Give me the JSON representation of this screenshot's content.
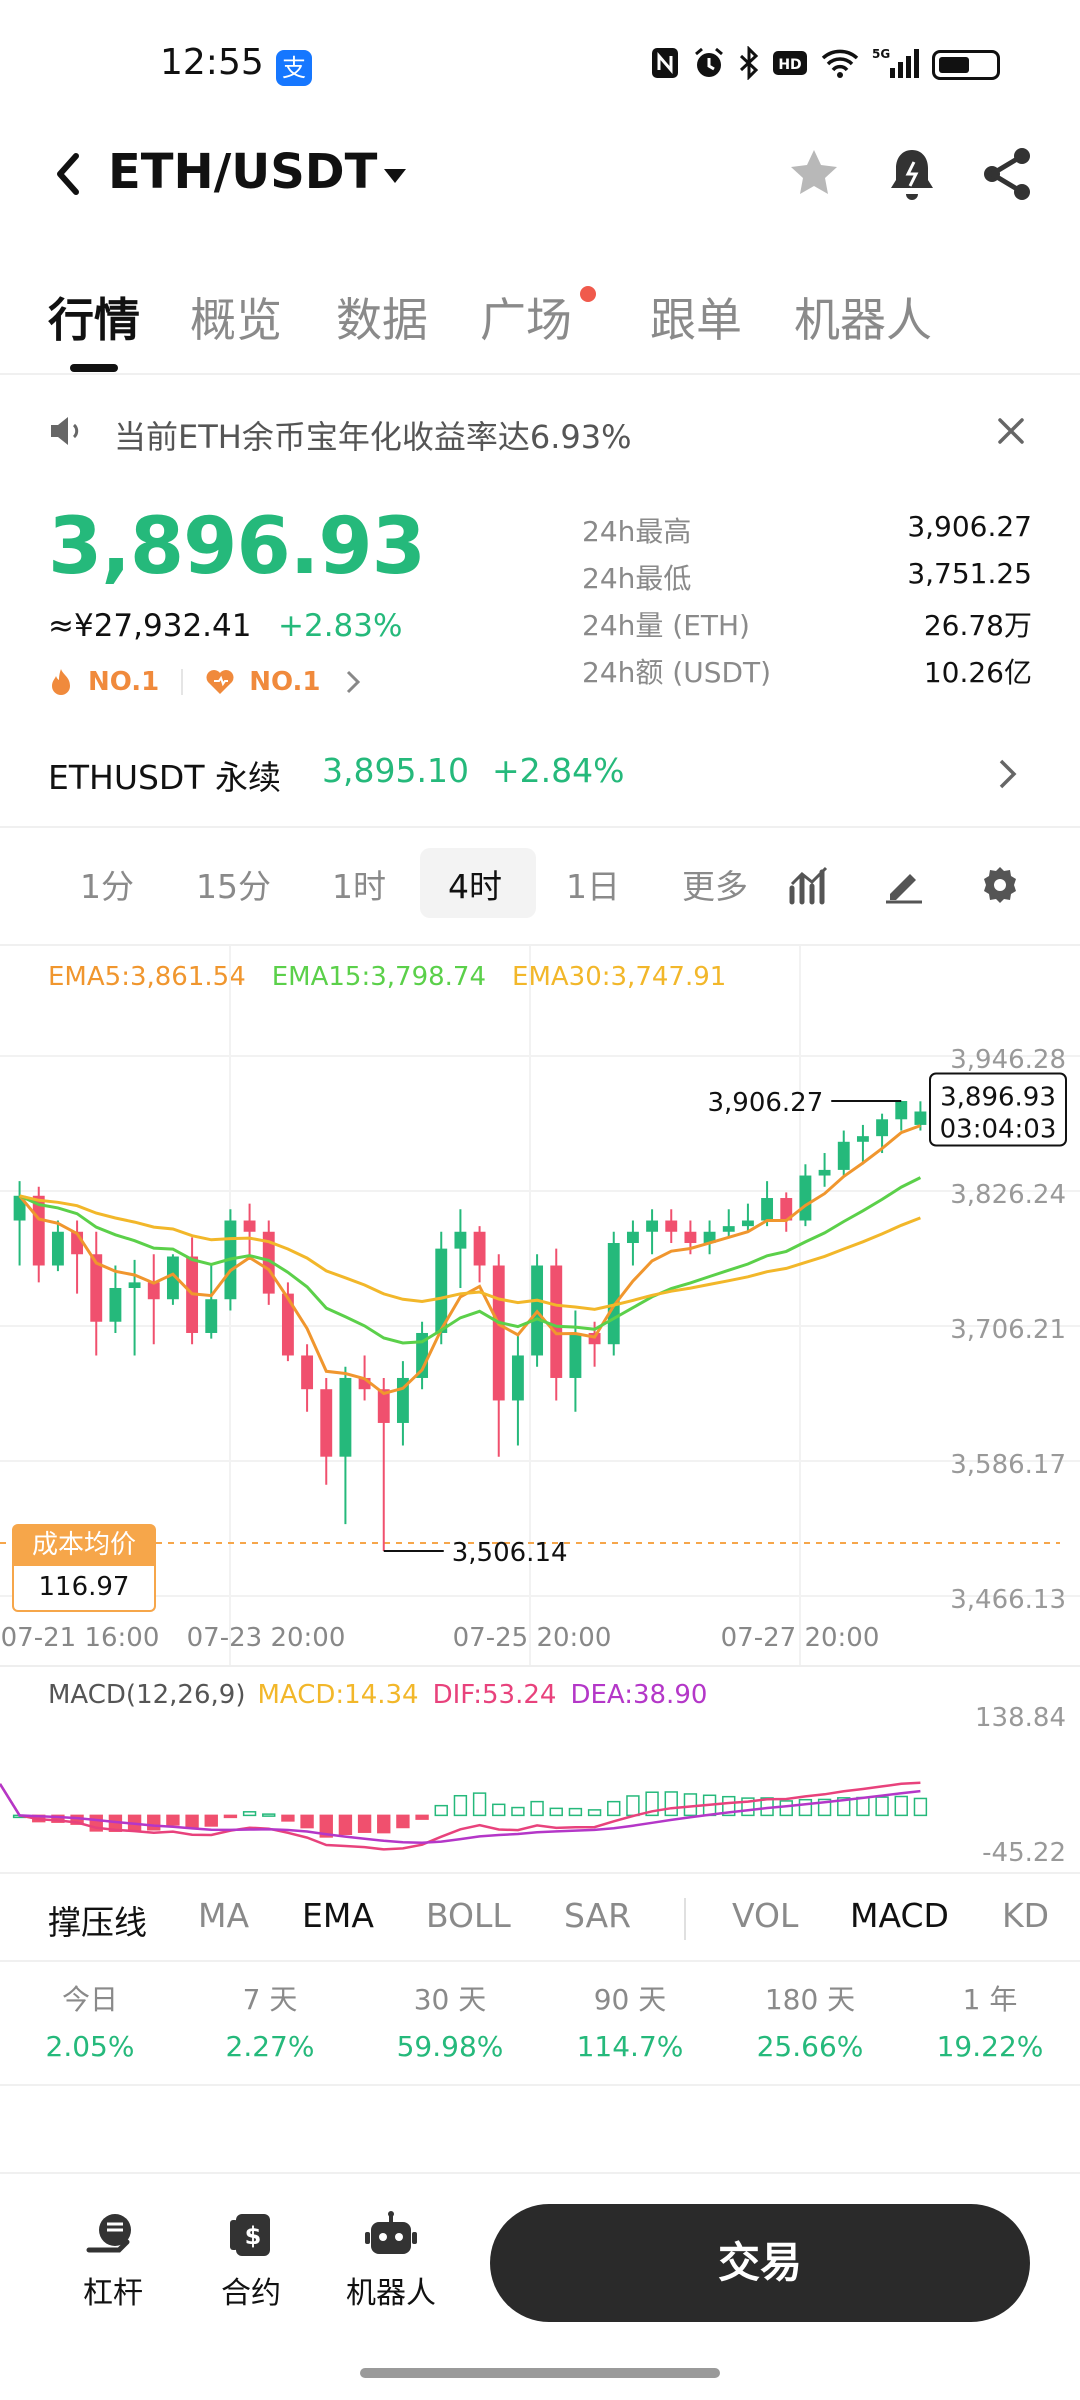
{
  "status_bar": {
    "time": "12:55",
    "app_badge_icon": "alipay-icon",
    "icons": [
      "nfc-icon",
      "alarm-icon",
      "bluetooth-icon",
      "hd-icon",
      "wifi-icon",
      "signal-5g-icon",
      "battery-icon"
    ],
    "network_label": "5G",
    "hd_label": "HD",
    "alipay_glyph": "支"
  },
  "header": {
    "title": "ETH/USDT",
    "icons": [
      "back-icon",
      "dropdown-caret-icon",
      "star-icon",
      "price-alert-bell-icon",
      "share-icon"
    ]
  },
  "tabs": [
    {
      "label": "行情",
      "active": true
    },
    {
      "label": "概览",
      "active": false
    },
    {
      "label": "数据",
      "active": false
    },
    {
      "label": "广场",
      "active": false,
      "dot": true
    },
    {
      "label": "跟单",
      "active": false
    },
    {
      "label": "机器人",
      "active": false
    }
  ],
  "notice": {
    "text": "当前ETH余币宝年化收益率达6.93%"
  },
  "ticker": {
    "price": "3,896.93",
    "cny": "≈¥27,932.41",
    "change": "+2.83%",
    "rank_hot": "NO.1",
    "rank_fav": "NO.1",
    "stats": [
      {
        "label": "24h最高",
        "value": "3,906.27"
      },
      {
        "label": "24h最低",
        "value": "3,751.25"
      },
      {
        "label": "24h量 (ETH)",
        "value": "26.78万"
      },
      {
        "label": "24h额 (USDT)",
        "value": "10.26亿"
      }
    ],
    "colors": {
      "up": "#25b97b",
      "down": "#f0506e",
      "rank": "#f08a3c"
    }
  },
  "perpetual": {
    "name": "ETHUSDT 永续",
    "price": "3,895.10",
    "change": "+2.84%"
  },
  "intervals": [
    {
      "label": "1分",
      "active": false
    },
    {
      "label": "15分",
      "active": false
    },
    {
      "label": "1时",
      "active": false
    },
    {
      "label": "4时",
      "active": true
    },
    {
      "label": "1日",
      "active": false
    },
    {
      "label": "更多",
      "active": false
    }
  ],
  "chart_tools": [
    "indicator-chart-icon",
    "draw-pen-icon",
    "settings-gear-icon"
  ],
  "ema": {
    "ema5": "EMA5:3,861.54",
    "ema15": "EMA15:3,798.74",
    "ema30": "EMA30:3,747.91"
  },
  "cost_badge": {
    "label": "成本均价",
    "value": "116.97"
  },
  "macd": {
    "name": "MACD(12,26,9)",
    "macd": "MACD:14.34",
    "dif": "DIF:53.24",
    "dea": "DEA:38.90"
  },
  "chart_data": {
    "type": "candlestick",
    "interval": "4时",
    "x_tick_labels": [
      "07-21 16:00",
      "07-23 20:00",
      "07-25 20:00",
      "07-27 20:00"
    ],
    "y_tick_labels": [
      "3,946.28",
      "3,826.24",
      "3,706.21",
      "3,586.17",
      "3,466.13"
    ],
    "ylim": [
      3466.13,
      3946.28
    ],
    "high_marker": "3,906.27",
    "low_marker": "3,506.14",
    "last_price": "3,896.93",
    "countdown": "03:04:03",
    "candles": [
      [
        3800,
        3822,
        3760,
        3835
      ],
      [
        3822,
        3760,
        3745,
        3830
      ],
      [
        3760,
        3790,
        3755,
        3800
      ],
      [
        3790,
        3770,
        3735,
        3800
      ],
      [
        3770,
        3710,
        3680,
        3790
      ],
      [
        3710,
        3740,
        3700,
        3760
      ],
      [
        3740,
        3745,
        3680,
        3765
      ],
      [
        3745,
        3730,
        3690,
        3770
      ],
      [
        3730,
        3768,
        3725,
        3770
      ],
      [
        3768,
        3700,
        3690,
        3785
      ],
      [
        3700,
        3730,
        3695,
        3760
      ],
      [
        3730,
        3800,
        3720,
        3810
      ],
      [
        3800,
        3790,
        3765,
        3815
      ],
      [
        3790,
        3735,
        3725,
        3800
      ],
      [
        3735,
        3680,
        3675,
        3745
      ],
      [
        3680,
        3650,
        3630,
        3690
      ],
      [
        3650,
        3590,
        3565,
        3660
      ],
      [
        3590,
        3660,
        3530,
        3670
      ],
      [
        3660,
        3650,
        3640,
        3680
      ],
      [
        3650,
        3620,
        3506.14,
        3660
      ],
      [
        3620,
        3660,
        3600,
        3675
      ],
      [
        3660,
        3700,
        3650,
        3710
      ],
      [
        3700,
        3775,
        3690,
        3790
      ],
      [
        3775,
        3790,
        3740,
        3810
      ],
      [
        3790,
        3760,
        3745,
        3795
      ],
      [
        3760,
        3640,
        3590,
        3770
      ],
      [
        3640,
        3680,
        3600,
        3700
      ],
      [
        3680,
        3760,
        3670,
        3770
      ],
      [
        3760,
        3660,
        3640,
        3775
      ],
      [
        3660,
        3700,
        3630,
        3720
      ],
      [
        3700,
        3690,
        3670,
        3710
      ],
      [
        3690,
        3780,
        3680,
        3790
      ],
      [
        3780,
        3790,
        3760,
        3800
      ],
      [
        3790,
        3800,
        3770,
        3810
      ],
      [
        3800,
        3790,
        3780,
        3810
      ],
      [
        3790,
        3780,
        3770,
        3800
      ],
      [
        3780,
        3790,
        3770,
        3800
      ],
      [
        3790,
        3795,
        3785,
        3810
      ],
      [
        3795,
        3800,
        3790,
        3815
      ],
      [
        3800,
        3820,
        3795,
        3835
      ],
      [
        3820,
        3800,
        3790,
        3825
      ],
      [
        3800,
        3840,
        3795,
        3850
      ],
      [
        3840,
        3845,
        3830,
        3860
      ],
      [
        3845,
        3870,
        3840,
        3880
      ],
      [
        3870,
        3875,
        3850,
        3885
      ],
      [
        3875,
        3890,
        3860,
        3895
      ],
      [
        3890,
        3906.27,
        3880,
        3906.27
      ],
      [
        3885,
        3896.93,
        3880,
        3906
      ]
    ],
    "candle_value_order": [
      "open",
      "close",
      "low",
      "high"
    ],
    "macd_ylim": [
      -45.22,
      138.84
    ],
    "macd_tick_labels": [
      "138.84",
      "-45.22"
    ]
  },
  "indicator_tabs": {
    "main": [
      {
        "label": "撑压线",
        "strong": true
      },
      {
        "label": "MA",
        "strong": false
      },
      {
        "label": "EMA",
        "strong": true
      },
      {
        "label": "BOLL",
        "strong": false
      },
      {
        "label": "SAR",
        "strong": false
      }
    ],
    "sub": [
      {
        "label": "VOL",
        "strong": false
      },
      {
        "label": "MACD",
        "strong": true
      },
      {
        "label": "KD",
        "strong": false
      }
    ]
  },
  "performance": [
    {
      "label": "今日",
      "value": "2.05%"
    },
    {
      "label": "7 天",
      "value": "2.27%"
    },
    {
      "label": "30 天",
      "value": "59.98%"
    },
    {
      "label": "90 天",
      "value": "114.7%"
    },
    {
      "label": "180 天",
      "value": "25.66%"
    },
    {
      "label": "1 年",
      "value": "19.22%"
    }
  ],
  "bottom_nav": [
    {
      "label": "杠杆",
      "icon": "leverage-icon"
    },
    {
      "label": "合约",
      "icon": "contract-icon"
    },
    {
      "label": "机器人",
      "icon": "robot-icon"
    }
  ],
  "trade_button": "交易"
}
